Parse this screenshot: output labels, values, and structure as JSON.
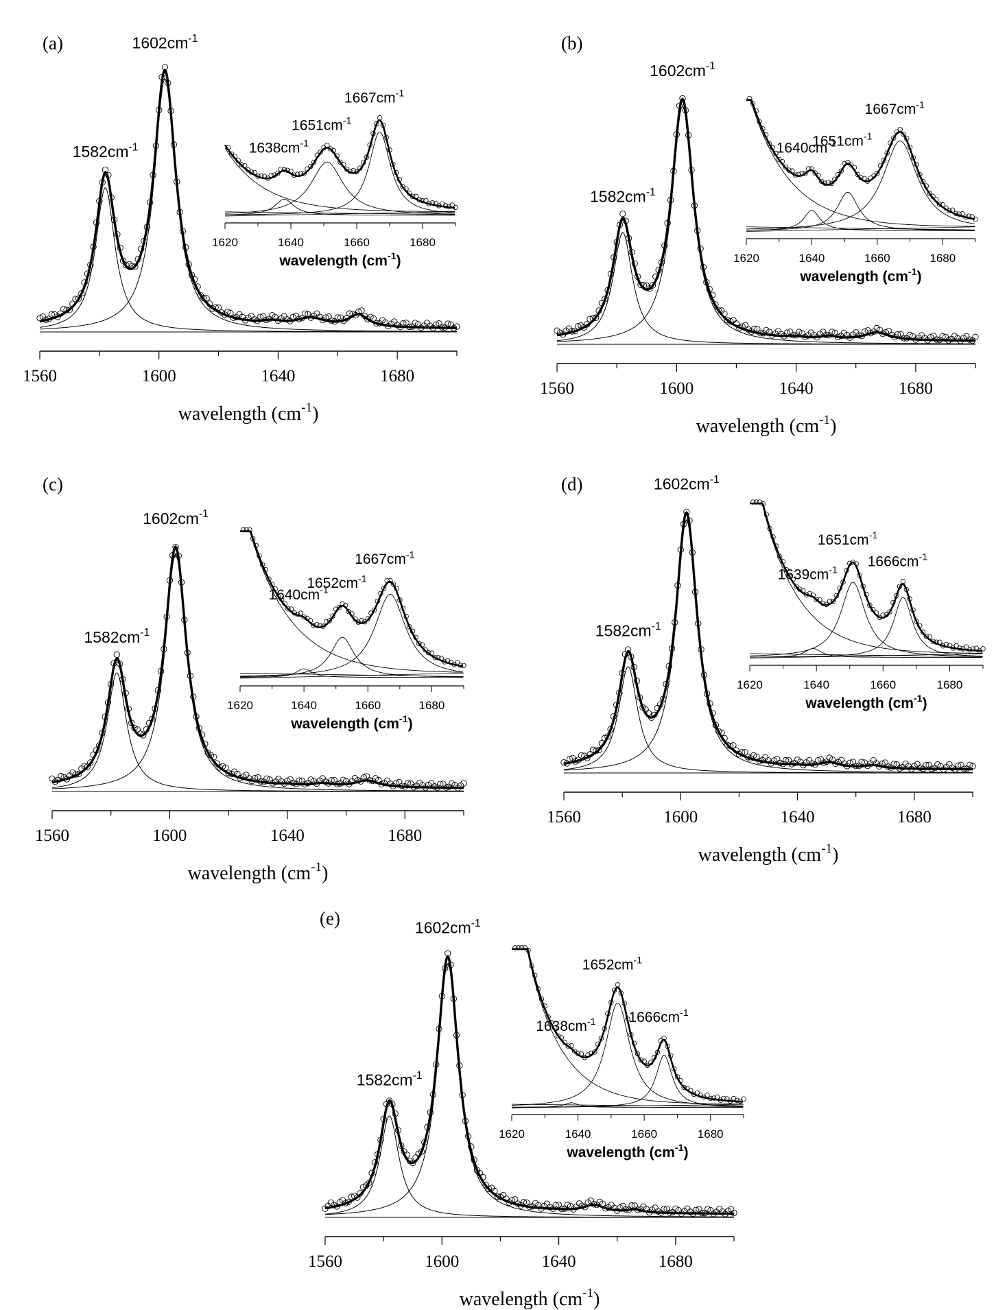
{
  "chart_data": [
    {
      "type": "line",
      "panel_label": "(a)",
      "xlabel": "wavelength (cm-1)",
      "xlim": [
        1560,
        1700
      ],
      "xticks": [
        "1560",
        "1600",
        "1640",
        "1680"
      ],
      "peaks": [
        {
          "label": "1582cm-1",
          "center": 1582,
          "height": 0.57,
          "width": 4.0
        },
        {
          "label": "1602cm-1",
          "center": 1602,
          "height": 1.0,
          "width": 4.5
        }
      ],
      "minor_peaks": [
        {
          "center": 1638,
          "height": 0.012,
          "width": 4.0
        },
        {
          "center": 1651,
          "height": 0.032,
          "width": 6.0
        },
        {
          "center": 1667,
          "height": 0.048,
          "width": 4.0
        }
      ],
      "inset": {
        "xlabel": "wavelength (cm-1)",
        "xlim": [
          1620,
          1690
        ],
        "xticks": [
          "1620",
          "1640",
          "1660",
          "1680"
        ],
        "base": 0.06,
        "tail": {
          "amp": 0.55,
          "decay": 12
        },
        "peaks": [
          {
            "label": "1638cm-1",
            "center": 1638,
            "height": 0.14,
            "width": 3.5
          },
          {
            "label": "1651cm-1",
            "center": 1651,
            "height": 0.46,
            "width": 6.0
          },
          {
            "label": "1667cm-1",
            "center": 1667,
            "height": 0.72,
            "width": 4.0
          }
        ]
      }
    },
    {
      "type": "line",
      "panel_label": "(b)",
      "xlabel": "wavelength (cm-1)",
      "xlim": [
        1560,
        1700
      ],
      "xticks": [
        "1560",
        "1600",
        "1640",
        "1680"
      ],
      "peaks": [
        {
          "label": "1582cm-1",
          "center": 1582,
          "height": 0.47,
          "width": 4.0
        },
        {
          "label": "1602cm-1",
          "center": 1602,
          "height": 1.0,
          "width": 4.5
        }
      ],
      "minor_peaks": [
        {
          "center": 1640,
          "height": 0.006,
          "width": 3.0
        },
        {
          "center": 1651,
          "height": 0.012,
          "width": 3.0
        },
        {
          "center": 1667,
          "height": 0.032,
          "width": 5.0
        }
      ],
      "inset": {
        "xlabel": "wavelength (cm-1)",
        "xlim": [
          1620,
          1690
        ],
        "xticks": [
          "1620",
          "1640",
          "1660",
          "1680"
        ],
        "base": 0.06,
        "tail": {
          "amp": 1.1,
          "decay": 12
        },
        "peaks": [
          {
            "label": "1640cm-1",
            "center": 1640,
            "height": 0.16,
            "width": 3.0
          },
          {
            "label": "1651cm-1",
            "center": 1651,
            "height": 0.3,
            "width": 4.0
          },
          {
            "label": "1667cm-1",
            "center": 1667,
            "height": 0.7,
            "width": 6.5
          }
        ]
      }
    },
    {
      "type": "line",
      "panel_label": "(c)",
      "xlabel": "wavelength (cm-1)",
      "xlim": [
        1560,
        1700
      ],
      "xticks": [
        "1560",
        "1600",
        "1640",
        "1680"
      ],
      "peaks": [
        {
          "label": "1582cm-1",
          "center": 1582,
          "height": 0.5,
          "width": 4.0
        },
        {
          "label": "1602cm-1",
          "center": 1602,
          "height": 1.0,
          "width": 4.5
        }
      ],
      "minor_peaks": [
        {
          "center": 1640,
          "height": 0.004,
          "width": 3.0
        },
        {
          "center": 1652,
          "height": 0.012,
          "width": 4.0
        },
        {
          "center": 1667,
          "height": 0.028,
          "width": 5.0
        }
      ],
      "inset": {
        "xlabel": "wavelength (cm-1)",
        "xlim": [
          1620,
          1690
        ],
        "xticks": [
          "1620",
          "1640",
          "1660",
          "1680"
        ],
        "base": 0.06,
        "tail": {
          "amp": 1.25,
          "decay": 13
        },
        "peaks": [
          {
            "label": "1640cm-1",
            "center": 1640,
            "height": 0.06,
            "width": 3.0
          },
          {
            "label": "1652cm-1",
            "center": 1652,
            "height": 0.28,
            "width": 4.5
          },
          {
            "label": "1667cm-1",
            "center": 1667,
            "height": 0.58,
            "width": 6.0
          }
        ]
      }
    },
    {
      "type": "line",
      "panel_label": "(d)",
      "xlabel": "wavelength (cm-1)",
      "xlim": [
        1560,
        1700
      ],
      "xticks": [
        "1560",
        "1600",
        "1640",
        "1680"
      ],
      "peaks": [
        {
          "label": "1582cm-1",
          "center": 1582,
          "height": 0.42,
          "width": 4.0
        },
        {
          "label": "1602cm-1",
          "center": 1602,
          "height": 1.0,
          "width": 4.5
        }
      ],
      "minor_peaks": [
        {
          "center": 1639,
          "height": 0.004,
          "width": 3.0
        },
        {
          "center": 1651,
          "height": 0.02,
          "width": 4.5
        },
        {
          "center": 1666,
          "height": 0.012,
          "width": 3.5
        }
      ],
      "inset": {
        "xlabel": "wavelength (cm-1)",
        "xlim": [
          1620,
          1690
        ],
        "xticks": [
          "1620",
          "1640",
          "1660",
          "1680"
        ],
        "base": 0.05,
        "tail": {
          "amp": 1.4,
          "decay": 11
        },
        "peaks": [
          {
            "label": "1639cm-1",
            "center": 1639,
            "height": 0.06,
            "width": 3.0
          },
          {
            "label": "1651cm-1",
            "center": 1651,
            "height": 0.5,
            "width": 4.5
          },
          {
            "label": "1666cm-1",
            "center": 1666,
            "height": 0.4,
            "width": 3.5
          }
        ]
      }
    },
    {
      "type": "line",
      "panel_label": "(e)",
      "xlabel": "wavelength (cm-1)",
      "xlim": [
        1560,
        1700
      ],
      "xticks": [
        "1560",
        "1600",
        "1640",
        "1680"
      ],
      "peaks": [
        {
          "label": "1582cm-1",
          "center": 1582,
          "height": 0.4,
          "width": 4.0
        },
        {
          "label": "1602cm-1",
          "center": 1602,
          "height": 1.0,
          "width": 4.5
        }
      ],
      "minor_peaks": [
        {
          "center": 1638,
          "height": 0.003,
          "width": 3.0
        },
        {
          "center": 1652,
          "height": 0.028,
          "width": 4.5
        },
        {
          "center": 1666,
          "height": 0.012,
          "width": 3.0
        }
      ],
      "inset": {
        "xlabel": "wavelength (cm-1)",
        "xlim": [
          1620,
          1690
        ],
        "xticks": [
          "1620",
          "1640",
          "1660",
          "1680"
        ],
        "base": 0.04,
        "tail": {
          "amp": 1.6,
          "decay": 10
        },
        "peaks": [
          {
            "label": "1638cm-1",
            "center": 1638,
            "height": 0.03,
            "width": 2.5
          },
          {
            "label": "1652cm-1",
            "center": 1652,
            "height": 0.68,
            "width": 4.5
          },
          {
            "label": "1666cm-1",
            "center": 1666,
            "height": 0.34,
            "width": 3.0
          }
        ]
      }
    }
  ]
}
